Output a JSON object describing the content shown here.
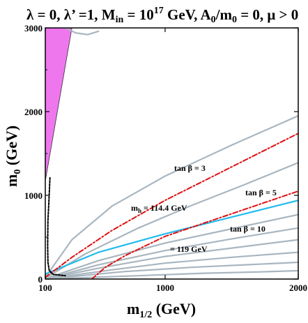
{
  "chart_data": {
    "type": "line",
    "title": "λ = 0, λ’ =1, M",
    "title_parts": {
      "main": "λ = 0, λ’ =1, M",
      "min_sub": "in",
      "eq": " = 10",
      "exp": "17",
      "gev_a": " GeV, A",
      "a_sub": "0",
      "over_m": "/m",
      "m_sub": "0",
      "rest": " = 0, μ > 0"
    },
    "xlabel": "m",
    "xlabel_sub": "1/2",
    "xlabel_unit": " (GeV)",
    "ylabel": "m",
    "ylabel_sub": "0",
    "ylabel_unit": " (GeV)",
    "xlim": [
      100,
      2000
    ],
    "ylim": [
      0,
      3000
    ],
    "x_ticks": [
      100,
      1000,
      2000
    ],
    "y_ticks": [
      0,
      1000,
      2000,
      3000
    ],
    "x_tick_labels": [
      "100",
      "1000",
      "2000"
    ],
    "y_tick_labels": [
      "0",
      "1000",
      "2000",
      "3000"
    ],
    "grid": false,
    "legend": "none",
    "colors": {
      "excluded_region": "#ee77ee",
      "tan_beta_contours": "#a9b6c0",
      "higgs_1144": "#dd1111",
      "higgs_119": "#dd1111",
      "cyan_line": "#22bbee",
      "black_dotted": "#000000",
      "frame": "#000000"
    },
    "annotations": {
      "tan3": "tan β = 3",
      "tan5": "tan β = 5",
      "tan10": "tan β = 10",
      "mh_main": "m",
      "mh_sub": "h",
      "mh_value": " = 114.4 GeV",
      "mh119": "= 119 GeV"
    },
    "series": [
      {
        "name": "tan β = 3",
        "style": "gray",
        "x": [
          100,
          300,
          600,
          1000,
          1500,
          2000
        ],
        "y": [
          20,
          470,
          870,
          1230,
          1600,
          1950
        ]
      },
      {
        "name": "tan β = 5",
        "style": "gray",
        "x": [
          100,
          400,
          800,
          1200,
          1600,
          2000
        ],
        "y": [
          10,
          300,
          610,
          880,
          1130,
          1390
        ]
      },
      {
        "name": "tan β = 10",
        "style": "gray",
        "x": [
          100,
          500,
          1000,
          1500,
          2000
        ],
        "y": [
          5,
          220,
          430,
          600,
          770
        ]
      },
      {
        "style": "gray",
        "x": [
          100,
          500,
          1000,
          1500,
          2000
        ],
        "y": [
          0,
          170,
          340,
          480,
          610
        ]
      },
      {
        "style": "gray",
        "x": [
          100,
          500,
          1000,
          1500,
          2000
        ],
        "y": [
          0,
          130,
          270,
          370,
          470
        ]
      },
      {
        "style": "gray",
        "x": [
          100,
          600,
          1000,
          1500,
          2000
        ],
        "y": [
          0,
          110,
          190,
          260,
          320
        ]
      },
      {
        "style": "gray",
        "x": [
          100,
          700,
          1200,
          1600,
          2000
        ],
        "y": [
          0,
          90,
          140,
          170,
          200
        ]
      },
      {
        "style": "gray",
        "x": [
          100,
          800,
          1300,
          1700,
          2000
        ],
        "y": [
          0,
          40,
          70,
          85,
          100
        ]
      },
      {
        "style": "gray",
        "x": [
          250,
          330,
          420,
          500
        ],
        "y": [
          3000,
          2940,
          2920,
          2960
        ]
      },
      {
        "name": "m_h = 114.4 GeV",
        "style": "red",
        "x": [
          100,
          300,
          600,
          1000,
          1500,
          2000
        ],
        "y": [
          20,
          260,
          580,
          940,
          1340,
          1740
        ]
      },
      {
        "name": "m_h = 119 GeV",
        "style": "red",
        "x": [
          450,
          550,
          700,
          1000,
          1500,
          2000
        ],
        "y": [
          0,
          140,
          280,
          510,
          780,
          1050
        ]
      },
      {
        "style": "cyan",
        "x": [
          100,
          500,
          1000,
          1500,
          2000
        ],
        "y": [
          60,
          320,
          540,
          740,
          940
        ]
      },
      {
        "style": "dotted",
        "x": [
          135,
          128,
          120,
          118,
          120,
          130,
          160,
          250
        ],
        "y": [
          1210,
          950,
          700,
          400,
          200,
          100,
          55,
          40
        ]
      }
    ],
    "regions": [
      {
        "name": "excluded_region",
        "x": [
          100,
          100,
          300,
          100
        ],
        "y": [
          1170,
          3000,
          3000,
          1170
        ]
      }
    ]
  }
}
